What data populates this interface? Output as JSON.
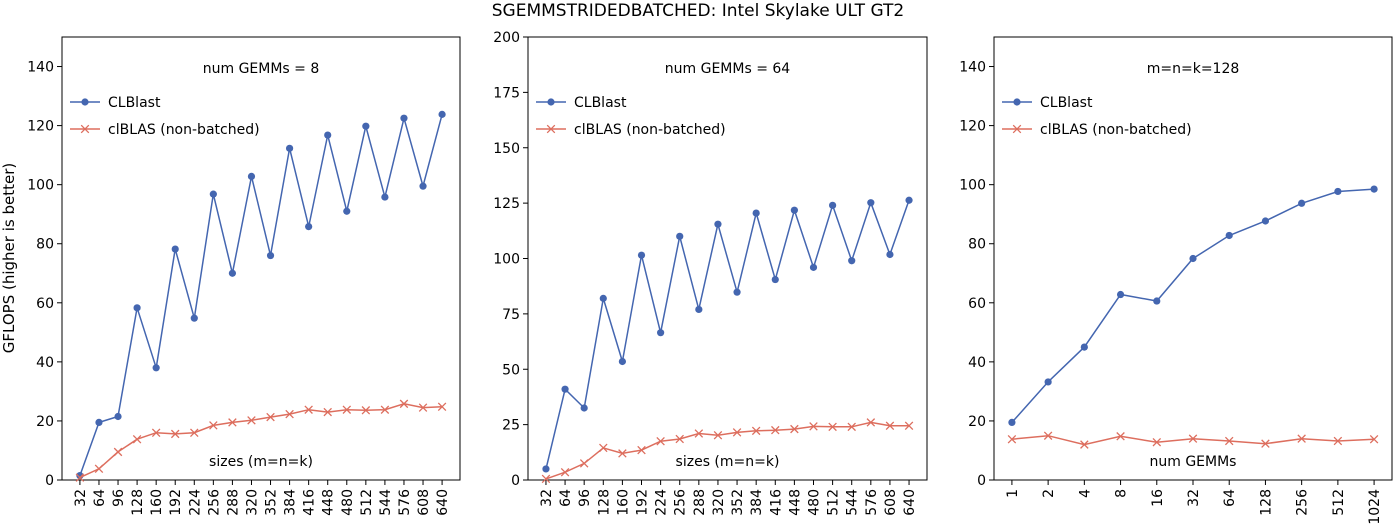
{
  "title": "SGEMMSTRIDEDBATCHED: Intel Skylake ULT GT2",
  "ylabel": "GFLOPS (higher is better)",
  "colors": {
    "clblast": "#4466b0",
    "clblas": "#dd6e5e"
  },
  "chart_data": [
    {
      "type": "line",
      "annotation": "num GEMMs = 8",
      "xlabel": "sizes (m=n=k)",
      "categories": [
        "32",
        "64",
        "96",
        "128",
        "160",
        "192",
        "224",
        "256",
        "288",
        "320",
        "352",
        "384",
        "416",
        "448",
        "480",
        "512",
        "544",
        "576",
        "608",
        "640"
      ],
      "ylim": [
        0,
        150
      ],
      "yticks": [
        0,
        20,
        40,
        60,
        80,
        100,
        120,
        140
      ],
      "legend_position": "upper-left",
      "series": [
        {
          "name": "CLBlast",
          "marker": "circle",
          "values": [
            1.5,
            19.5,
            21.5,
            58.3,
            38.0,
            78.2,
            54.8,
            96.8,
            70.0,
            102.8,
            76.0,
            112.3,
            85.8,
            116.8,
            91.0,
            119.8,
            95.8,
            122.5,
            99.5,
            123.8
          ]
        },
        {
          "name": "clBLAS (non-batched)",
          "marker": "x",
          "values": [
            0.8,
            3.8,
            9.5,
            13.8,
            16.0,
            15.6,
            16.0,
            18.5,
            19.5,
            20.2,
            21.3,
            22.3,
            23.8,
            23.0,
            23.8,
            23.6,
            23.8,
            25.8,
            24.5,
            24.8
          ]
        }
      ]
    },
    {
      "type": "line",
      "annotation": "num GEMMs = 64",
      "xlabel": "sizes (m=n=k)",
      "categories": [
        "32",
        "64",
        "96",
        "128",
        "160",
        "192",
        "224",
        "256",
        "288",
        "320",
        "352",
        "384",
        "416",
        "448",
        "480",
        "512",
        "544",
        "576",
        "608",
        "640"
      ],
      "ylim": [
        0,
        200
      ],
      "yticks": [
        0,
        25,
        50,
        75,
        100,
        125,
        150,
        175,
        200
      ],
      "legend_position": "upper-left",
      "series": [
        {
          "name": "CLBlast",
          "marker": "circle",
          "values": [
            5.0,
            41.0,
            32.5,
            82.0,
            53.5,
            101.5,
            66.5,
            110.0,
            77.0,
            115.5,
            84.8,
            120.5,
            90.5,
            121.8,
            96.0,
            124.0,
            99.0,
            125.2,
            101.8,
            126.3
          ]
        },
        {
          "name": "clBLAS (non-batched)",
          "marker": "x",
          "values": [
            0.5,
            3.5,
            7.5,
            14.5,
            12.0,
            13.5,
            17.5,
            18.5,
            21.0,
            20.2,
            21.5,
            22.2,
            22.5,
            23.0,
            24.2,
            24.0,
            24.0,
            26.0,
            24.5,
            24.5
          ]
        }
      ]
    },
    {
      "type": "line",
      "annotation": "m=n=k=128",
      "xlabel": "num GEMMs",
      "categories": [
        "1",
        "2",
        "4",
        "8",
        "16",
        "32",
        "64",
        "128",
        "256",
        "512",
        "1024"
      ],
      "ylim": [
        0,
        150
      ],
      "yticks": [
        0,
        20,
        40,
        60,
        80,
        100,
        120,
        140
      ],
      "legend_position": "upper-left",
      "series": [
        {
          "name": "CLBlast",
          "marker": "circle",
          "values": [
            19.5,
            33.2,
            45.0,
            62.8,
            60.6,
            75.0,
            82.8,
            87.7,
            93.7,
            97.7,
            98.5
          ]
        },
        {
          "name": "clBLAS (non-batched)",
          "marker": "x",
          "values": [
            13.8,
            15.0,
            12.0,
            14.8,
            12.8,
            14.0,
            13.2,
            12.3,
            14.0,
            13.2,
            13.8
          ]
        }
      ]
    }
  ]
}
